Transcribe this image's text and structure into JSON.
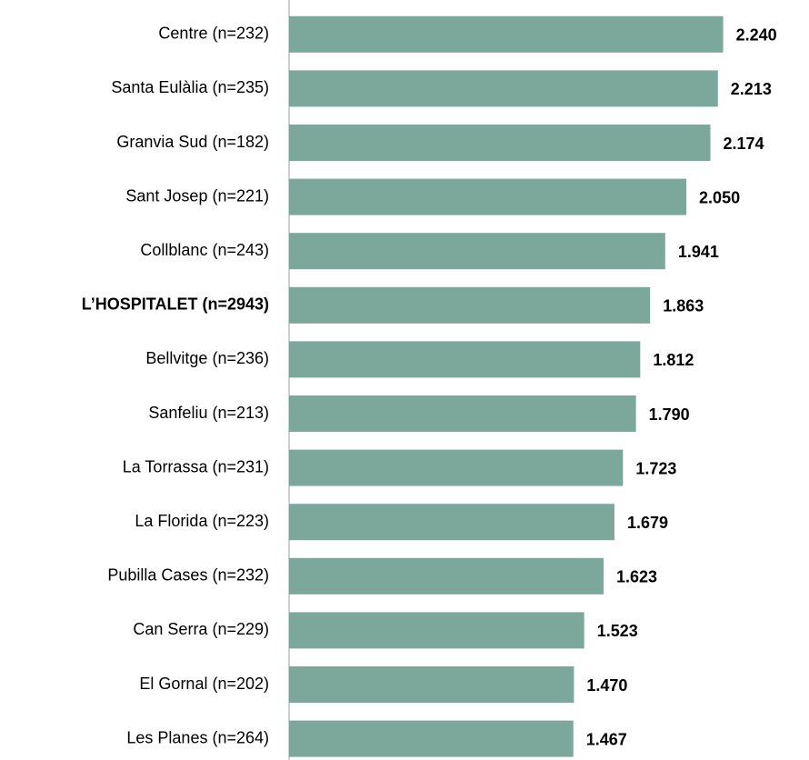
{
  "chart_data": {
    "type": "bar",
    "orientation": "horizontal",
    "categories": [
      "Centre (n=232)",
      "Santa Eulàlia (n=235)",
      "Granvia Sud (n=182)",
      "Sant Josep (n=221)",
      "Collblanc (n=243)",
      "L’HOSPITALET (n=2943)",
      "Bellvitge (n=236)",
      "Sanfeliu (n=213)",
      "La Torrassa (n=231)",
      "La Florida (n=223)",
      "Pubilla Cases (n=232)",
      "Can Serra (n=229)",
      "El Gornal (n=202)",
      "Les Planes (n=264)"
    ],
    "values": [
      2.24,
      2.213,
      2.174,
      2.05,
      1.941,
      1.863,
      1.812,
      1.79,
      1.723,
      1.679,
      1.623,
      1.523,
      1.47,
      1.467
    ],
    "value_labels": [
      "2.240",
      "2.213",
      "2.174",
      "2.050",
      "1.941",
      "1.863",
      "1.812",
      "1.790",
      "1.723",
      "1.679",
      "1.623",
      "1.523",
      "1.470",
      "1.467"
    ],
    "color": "#7ba89b",
    "xlim": [
      0,
      2.5
    ],
    "highlight_index": 5
  }
}
